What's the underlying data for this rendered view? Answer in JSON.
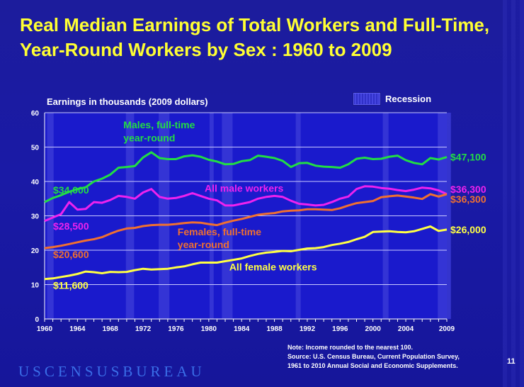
{
  "slide": {
    "title": "Real Median Earnings of Total Workers and Full-Time, Year-Round Workers by Sex :  1960 to 2009",
    "note_lines": [
      "Note: Income rounded to the nearest 100.",
      "Source:  U.S. Census Bureau, Current Population Survey,",
      "1961 to 2010 Annual Social and Economic Supplements."
    ],
    "footer_brand": "USCENSUSBUREAU",
    "page_number": "11"
  },
  "chart_data": {
    "type": "line",
    "title": "Real Median Earnings of Total Workers and Full-Time, Year-Round Workers by Sex :  1960 to 2009",
    "ylabel": "Earnings in thousands (2009 dollars)",
    "xlabel": "",
    "xlim": [
      1960,
      2009
    ],
    "ylim": [
      0,
      60
    ],
    "x_ticks": [
      "1960",
      "1964",
      "1968",
      "1972",
      "1976",
      "1980",
      "1984",
      "1988",
      "1992",
      "1996",
      "2000",
      "2004",
      "2009"
    ],
    "y_ticks": [
      "0",
      "10",
      "20",
      "30",
      "40",
      "50",
      "60"
    ],
    "grid": true,
    "legend": {
      "label": "Recession",
      "placement": "top-right"
    },
    "recessions": [
      [
        1960.3,
        1961.1
      ],
      [
        1969.9,
        1970.9
      ],
      [
        1973.9,
        1975.2
      ],
      [
        1980.1,
        1980.6
      ],
      [
        1981.6,
        1982.9
      ],
      [
        1990.6,
        1991.2
      ],
      [
        2001.2,
        2001.9
      ],
      [
        2007.9,
        2009.5
      ]
    ],
    "x": [
      1960,
      1961,
      1962,
      1963,
      1964,
      1965,
      1966,
      1967,
      1968,
      1969,
      1970,
      1971,
      1972,
      1973,
      1974,
      1975,
      1976,
      1977,
      1978,
      1979,
      1980,
      1981,
      1982,
      1983,
      1984,
      1985,
      1986,
      1987,
      1988,
      1989,
      1990,
      1991,
      1992,
      1993,
      1994,
      1995,
      1996,
      1997,
      1998,
      1999,
      2000,
      2001,
      2002,
      2003,
      2004,
      2005,
      2006,
      2007,
      2008,
      2009
    ],
    "series": [
      {
        "name": "Males, full-time year-round",
        "color": "#22dd44",
        "start_label": "$34,000",
        "end_label": "$47,100",
        "values": [
          34.0,
          35.2,
          36.0,
          37.0,
          37.8,
          38.3,
          40.0,
          40.8,
          42.0,
          44.0,
          44.2,
          44.5,
          47.0,
          48.5,
          46.8,
          46.5,
          46.5,
          47.3,
          47.6,
          47.2,
          46.3,
          45.8,
          45.0,
          45.1,
          45.9,
          46.2,
          47.5,
          47.2,
          46.8,
          46.0,
          44.2,
          45.3,
          45.4,
          44.6,
          44.3,
          44.2,
          44.0,
          45.0,
          46.6,
          46.9,
          46.5,
          46.6,
          47.2,
          47.5,
          46.2,
          45.4,
          45.0,
          46.8,
          46.4,
          47.1
        ]
      },
      {
        "name": "All male workers",
        "color": "#ee22ee",
        "start_label": "$28,500",
        "end_label": "$36,300",
        "values": [
          28.5,
          29.5,
          30.5,
          34.0,
          31.8,
          32.0,
          34.0,
          33.8,
          34.6,
          35.8,
          35.5,
          35.0,
          36.8,
          37.8,
          35.5,
          35.0,
          35.2,
          35.8,
          36.6,
          35.8,
          35.0,
          34.5,
          33.0,
          33.0,
          33.5,
          34.0,
          35.0,
          35.5,
          35.8,
          35.5,
          34.4,
          33.5,
          33.3,
          33.0,
          33.2,
          34.0,
          35.0,
          35.6,
          37.8,
          38.6,
          38.5,
          38.1,
          37.9,
          37.5,
          37.2,
          37.6,
          38.2,
          38.0,
          37.4,
          36.3
        ]
      },
      {
        "name": "Females, full-time year-round",
        "color": "#f07030",
        "start_label": "$20,600",
        "end_label": "$36,300",
        "values": [
          20.6,
          20.9,
          21.3,
          21.8,
          22.3,
          22.8,
          23.2,
          23.8,
          24.8,
          25.7,
          26.3,
          26.5,
          27.0,
          27.3,
          27.4,
          27.4,
          27.6,
          27.9,
          28.1,
          28.0,
          27.6,
          27.3,
          28.0,
          28.6,
          29.1,
          29.7,
          30.3,
          30.6,
          30.8,
          31.3,
          31.5,
          31.6,
          31.9,
          31.9,
          31.8,
          31.7,
          32.2,
          33.0,
          33.7,
          34.0,
          34.3,
          35.4,
          35.7,
          35.9,
          35.6,
          35.3,
          34.9,
          36.3,
          35.6,
          36.3
        ]
      },
      {
        "name": "All female workers",
        "color": "#ffff44",
        "start_label": "$11,600",
        "end_label": "$26,000",
        "values": [
          11.6,
          11.8,
          12.2,
          12.6,
          13.1,
          13.8,
          13.6,
          13.3,
          13.7,
          13.6,
          13.7,
          14.2,
          14.6,
          14.4,
          14.5,
          14.6,
          15.0,
          15.3,
          15.9,
          16.4,
          16.4,
          16.4,
          16.8,
          17.2,
          17.6,
          18.3,
          18.9,
          19.3,
          19.5,
          19.8,
          19.7,
          20.1,
          20.5,
          20.6,
          20.9,
          21.5,
          21.9,
          22.4,
          23.2,
          23.9,
          25.3,
          25.4,
          25.5,
          25.3,
          25.2,
          25.5,
          26.2,
          26.9,
          25.6,
          26.0
        ]
      }
    ],
    "annotations": [
      {
        "text": "Males, full-time",
        "color": "#22dd44",
        "x": 1969.6,
        "y": 55.5
      },
      {
        "text": "year-round",
        "color": "#22dd44",
        "x": 1969.6,
        "y": 51.7
      },
      {
        "text": "All male workers",
        "color": "#ee22ee",
        "x": 1979.5,
        "y": 37.0
      },
      {
        "text": "Females, full-time",
        "color": "#f07030",
        "x": 1976.2,
        "y": 24.3
      },
      {
        "text": "year-round",
        "color": "#f07030",
        "x": 1976.2,
        "y": 20.6
      },
      {
        "text": "All female workers",
        "color": "#ffff44",
        "x": 1982.5,
        "y": 14.1
      }
    ]
  }
}
